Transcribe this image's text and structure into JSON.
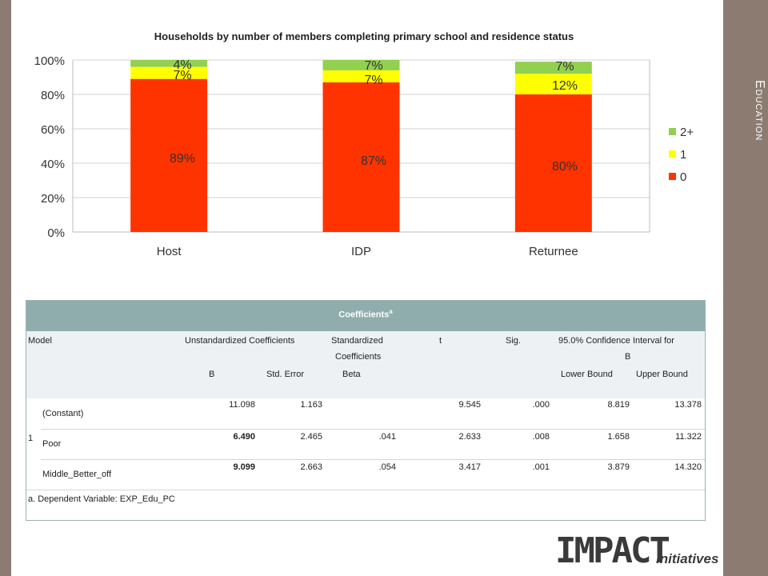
{
  "section_title": "Education",
  "chart_data": {
    "type": "bar",
    "stacked": true,
    "title": "Households by number of members completing primary school and residence status",
    "categories": [
      "Host",
      "IDP",
      "Returnee"
    ],
    "series": [
      {
        "name": "0",
        "color": "#ff3300",
        "values": [
          89,
          87,
          80
        ],
        "labels": [
          "89%",
          "87%",
          "80%"
        ]
      },
      {
        "name": "1",
        "color": "#ffff00",
        "values": [
          7,
          7,
          12
        ],
        "labels": [
          "7%",
          "7%",
          "12%"
        ]
      },
      {
        "name": "2+",
        "color": "#92d050",
        "values": [
          4,
          7,
          7
        ],
        "labels": [
          "4%",
          "7%",
          "7%"
        ]
      }
    ],
    "ylim": [
      0,
      100
    ],
    "yticks": [
      0,
      20,
      40,
      60,
      80,
      100
    ],
    "ytick_labels": [
      "0%",
      "20%",
      "40%",
      "60%",
      "80%",
      "100%"
    ],
    "legend_order": [
      "2+",
      "1",
      "0"
    ],
    "legend_position": "right",
    "grid": true
  },
  "table": {
    "title": "Coefficients",
    "title_sup": "a",
    "headers": {
      "model": "Model",
      "unstd": "Unstandardized Coefficients",
      "std1": "Standardized",
      "std2": "Coefficients",
      "t": "t",
      "sig": "Sig.",
      "ci1": "95.0% Confidence Interval for",
      "ci2": "B",
      "b": "B",
      "se": "Std. Error",
      "beta": "Beta",
      "lower": "Lower Bound",
      "upper": "Upper Bound"
    },
    "model_number": "1",
    "rows": [
      {
        "name": "(Constant)",
        "b": "11.098",
        "se": "1.163",
        "beta": "",
        "t": "9.545",
        "sig": ".000",
        "lower": "8.819",
        "upper": "13.378",
        "b_bold": false
      },
      {
        "name": "Poor",
        "b": "6.490",
        "se": "2.465",
        "beta": ".041",
        "t": "2.633",
        "sig": ".008",
        "lower": "1.658",
        "upper": "11.322",
        "b_bold": true
      },
      {
        "name": "Middle_Better_off",
        "b": "9.099",
        "se": "2.663",
        "beta": ".054",
        "t": "3.417",
        "sig": ".001",
        "lower": "3.879",
        "upper": "14.320",
        "b_bold": true
      }
    ],
    "footnote": "a. Dependent Variable: EXP_Edu_PC"
  },
  "logo": {
    "main": "IMPACT",
    "sub": "Initiatives"
  }
}
